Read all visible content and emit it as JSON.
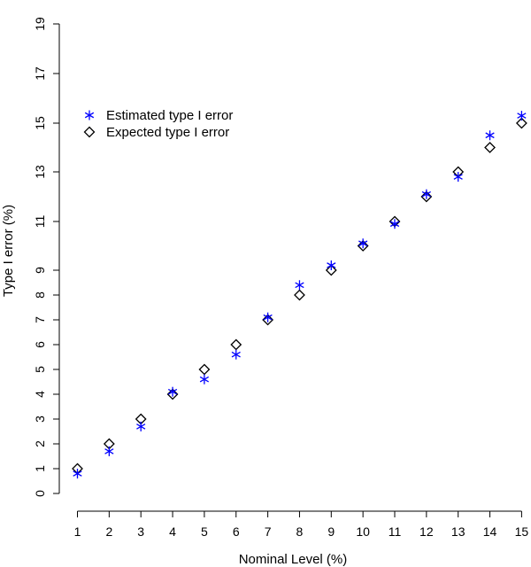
{
  "chart_data": {
    "type": "scatter",
    "xlabel": "Nominal Level (%)",
    "ylabel": "Type I error (%)",
    "x_ticks": [
      1,
      2,
      3,
      4,
      5,
      6,
      7,
      8,
      9,
      10,
      11,
      12,
      13,
      14,
      15
    ],
    "y_ticks": [
      0,
      1,
      2,
      3,
      4,
      5,
      6,
      7,
      8,
      9,
      11,
      13,
      15,
      17,
      19
    ],
    "legend_position": "top-left",
    "series": [
      {
        "name": "Estimated type I error",
        "marker": "asterisk",
        "color": "#0000ff",
        "points": [
          {
            "x": 1,
            "y": 0.8
          },
          {
            "x": 2,
            "y": 1.7
          },
          {
            "x": 3,
            "y": 2.7
          },
          {
            "x": 4,
            "y": 4.1
          },
          {
            "x": 5,
            "y": 4.6
          },
          {
            "x": 6,
            "y": 5.6
          },
          {
            "x": 7,
            "y": 7.1
          },
          {
            "x": 8,
            "y": 8.4
          },
          {
            "x": 9,
            "y": 9.2
          },
          {
            "x": 10,
            "y": 10.1
          },
          {
            "x": 11,
            "y": 10.9
          },
          {
            "x": 12,
            "y": 12.1
          },
          {
            "x": 13,
            "y": 12.8
          },
          {
            "x": 14,
            "y": 14.5
          },
          {
            "x": 15,
            "y": 15.3
          }
        ]
      },
      {
        "name": "Expected type I error",
        "marker": "diamond",
        "color": "#000000",
        "points": [
          {
            "x": 1,
            "y": 1
          },
          {
            "x": 2,
            "y": 2
          },
          {
            "x": 3,
            "y": 3
          },
          {
            "x": 4,
            "y": 4
          },
          {
            "x": 5,
            "y": 5
          },
          {
            "x": 6,
            "y": 6
          },
          {
            "x": 7,
            "y": 7
          },
          {
            "x": 8,
            "y": 8
          },
          {
            "x": 9,
            "y": 9
          },
          {
            "x": 10,
            "y": 10
          },
          {
            "x": 11,
            "y": 11
          },
          {
            "x": 12,
            "y": 12
          },
          {
            "x": 13,
            "y": 13
          },
          {
            "x": 14,
            "y": 14
          },
          {
            "x": 15,
            "y": 15
          }
        ]
      }
    ]
  }
}
